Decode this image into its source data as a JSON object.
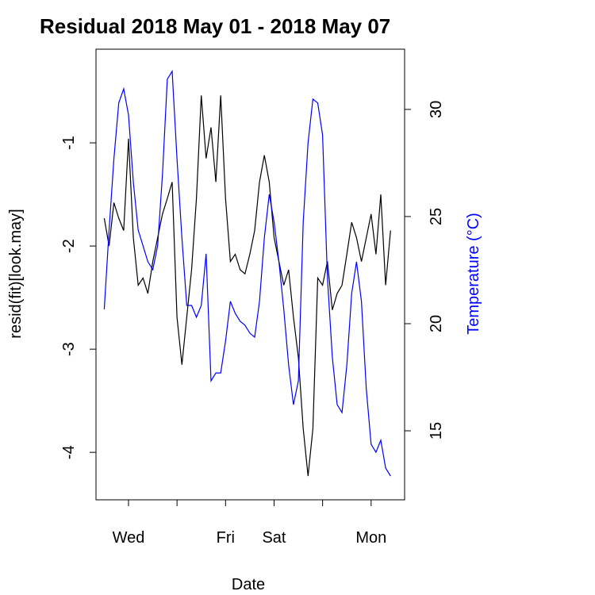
{
  "chart_data": {
    "type": "line",
    "title": "Residual  2018 May 01 - 2018 May 07",
    "xlabel": "Date",
    "ylabel": "resid(fit)[look.may]",
    "y2label": "Temperature (°C)",
    "x": [
      0.5,
      0.6,
      0.7,
      0.8,
      0.9,
      1.0,
      1.1,
      1.2,
      1.3,
      1.4,
      1.5,
      1.6,
      1.7,
      1.8,
      1.9,
      2.0,
      2.1,
      2.2,
      2.3,
      2.4,
      2.5,
      2.6,
      2.7,
      2.8,
      2.9,
      3.0,
      3.1,
      3.2,
      3.3,
      3.4,
      3.5,
      3.6,
      3.7,
      3.8,
      3.9,
      4.0,
      4.1,
      4.2,
      4.3,
      4.4,
      4.5,
      4.6,
      4.7,
      4.8,
      4.9,
      5.0,
      5.1,
      5.2,
      5.3,
      5.4,
      5.5,
      5.6,
      5.7,
      5.8,
      5.9,
      6.0,
      6.1,
      6.2,
      6.3,
      6.4
    ],
    "series": [
      {
        "color": "#000000",
        "values": [
          -1.73,
          -2.0,
          -1.58,
          -1.73,
          -1.85,
          -0.96,
          -1.92,
          -2.38,
          -2.31,
          -2.46,
          -2.15,
          -1.92,
          -1.69,
          -1.54,
          -1.38,
          -2.69,
          -3.15,
          -2.69,
          -2.23,
          -1.54,
          -0.54,
          -1.15,
          -0.85,
          -1.38,
          -0.54,
          -1.54,
          -2.15,
          -2.08,
          -2.23,
          -2.27,
          -2.08,
          -1.85,
          -1.38,
          -1.12,
          -1.38,
          -1.92,
          -2.15,
          -2.38,
          -2.23,
          -2.69,
          -3.08,
          -3.77,
          -4.23,
          -3.77,
          -2.31,
          -2.38,
          -2.15,
          -2.62,
          -2.46,
          -2.38,
          -2.08,
          -1.77,
          -1.92,
          -2.15,
          -1.92,
          -1.69,
          -2.08,
          -1.5,
          -2.38,
          -1.85
        ]
      },
      {
        "color": "#0000ff",
        "axis": "y2",
        "values": [
          20.67,
          24.37,
          27.7,
          30.3,
          30.96,
          29.74,
          26.59,
          24.37,
          23.63,
          22.89,
          22.52,
          23.63,
          26.96,
          31.41,
          31.78,
          27.7,
          24.0,
          20.85,
          20.85,
          20.3,
          20.85,
          23.26,
          17.33,
          17.7,
          17.7,
          19.19,
          21.04,
          20.48,
          20.11,
          19.93,
          19.56,
          19.37,
          21.04,
          24.0,
          26.04,
          24.74,
          22.89,
          20.67,
          18.07,
          16.22,
          17.33,
          24.74,
          28.44,
          30.48,
          30.3,
          28.81,
          22.15,
          18.44,
          16.22,
          15.85,
          18.07,
          21.41,
          22.89,
          21.04,
          16.96,
          14.37,
          14.0,
          14.56,
          13.26,
          12.89
        ]
      }
    ],
    "xlim": [
      0.33,
      6.69
    ],
    "xticks": [
      {
        "value": 1,
        "label": "Wed"
      },
      {
        "value": 2,
        "label": null
      },
      {
        "value": 3,
        "label": "Fri"
      },
      {
        "value": 4,
        "label": "Sat"
      },
      {
        "value": 5,
        "label": null
      },
      {
        "value": 6,
        "label": "Mon"
      }
    ],
    "ylim": [
      -4.46,
      -0.092
    ],
    "yticks": [
      -1,
      -2,
      -3,
      -4
    ],
    "y2lim": [
      11.78,
      32.81
    ],
    "y2ticks": [
      15,
      20,
      25,
      30
    ],
    "y2color": "#0000ff"
  }
}
